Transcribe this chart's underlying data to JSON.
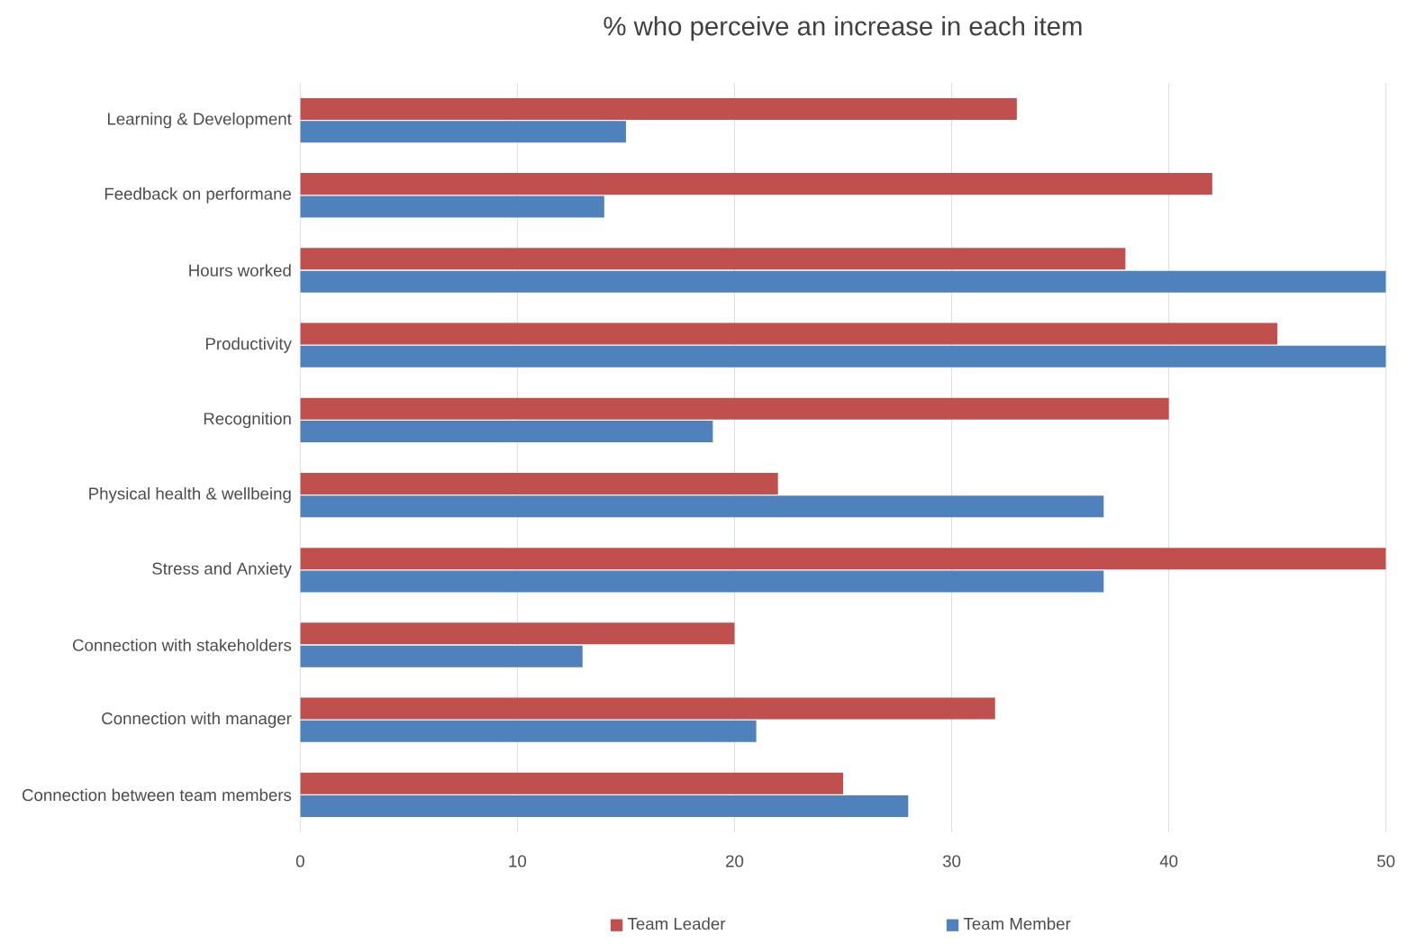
{
  "chart_data": {
    "type": "bar",
    "orientation": "horizontal",
    "title": "% who perceive an increase in each item",
    "categories": [
      "Learning & Development",
      "Feedback on performane",
      "Hours worked",
      "Productivity",
      "Recognition",
      "Physical health & wellbeing",
      "Stress and Anxiety",
      "Connection with stakeholders",
      "Connection with manager",
      "Connection between team members"
    ],
    "series": [
      {
        "name": "Team Leader",
        "color": "#c0504d",
        "values": [
          33,
          42,
          38,
          45,
          40,
          22,
          50,
          20,
          32,
          25
        ]
      },
      {
        "name": "Team Member",
        "color": "#4f81bd",
        "values": [
          15,
          14,
          50,
          50,
          19,
          37,
          37,
          13,
          21,
          28
        ]
      }
    ],
    "xlim": [
      0,
      50
    ],
    "xticks": [
      0,
      10,
      20,
      30,
      40,
      50
    ],
    "grid": "x",
    "legend": "bottom"
  }
}
